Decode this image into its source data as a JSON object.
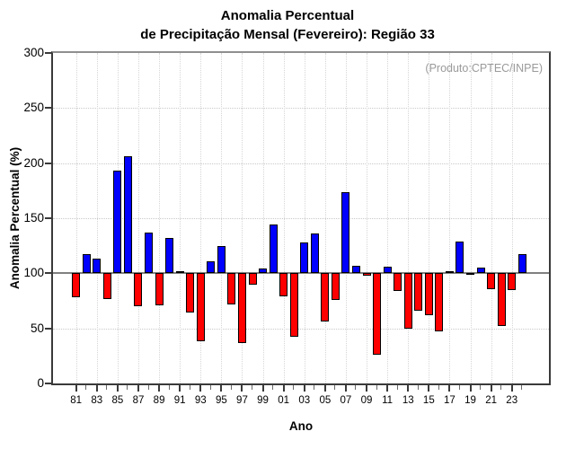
{
  "title": {
    "line1": "Anomalia Percentual",
    "line2": "de Precipitação Mensal (Fevereiro): Região 33"
  },
  "annotation": "(Produto:CPTEC/INPE)",
  "chart_data": {
    "type": "bar",
    "title": "Anomalia Percentual de Precipitação Mensal (Fevereiro): Região 33",
    "xlabel": "Ano",
    "ylabel": "Anomalia Percentual (%)",
    "ylim": [
      0,
      300
    ],
    "yticks": [
      0,
      50,
      100,
      150,
      200,
      250,
      300
    ],
    "baseline": 100,
    "grid": "dotted, horizontal every 50, vertical every labeled year",
    "legend": "none",
    "colors": {
      "above_baseline": "#0000ff",
      "below_baseline": "#ff0000",
      "baseline_line": "#808080",
      "bar_border": "#000000",
      "annotation_text": "#9a9a9a"
    },
    "categories": [
      1981,
      1982,
      1983,
      1984,
      1985,
      1986,
      1987,
      1988,
      1989,
      1990,
      1991,
      1992,
      1993,
      1994,
      1995,
      1996,
      1997,
      1998,
      1999,
      2000,
      2001,
      2002,
      2003,
      2004,
      2005,
      2006,
      2007,
      2008,
      2009,
      2010,
      2011,
      2012,
      2013,
      2014,
      2015,
      2016,
      2017,
      2018,
      2019,
      2020,
      2021,
      2022,
      2023,
      2024
    ],
    "values": [
      78,
      117,
      113,
      77,
      193,
      206,
      70,
      137,
      71,
      132,
      101,
      64,
      38,
      111,
      125,
      72,
      37,
      90,
      104,
      144,
      79,
      42,
      128,
      136,
      56,
      76,
      174,
      107,
      98,
      26,
      106,
      84,
      50,
      66,
      62,
      47,
      102,
      129,
      99,
      105,
      86,
      52,
      85,
      117
    ],
    "x_tick_labels": [
      "81",
      "83",
      "85",
      "87",
      "89",
      "91",
      "93",
      "95",
      "97",
      "99",
      "01",
      "03",
      "05",
      "07",
      "09",
      "11",
      "13",
      "15",
      "17",
      "19",
      "21",
      "23"
    ]
  }
}
